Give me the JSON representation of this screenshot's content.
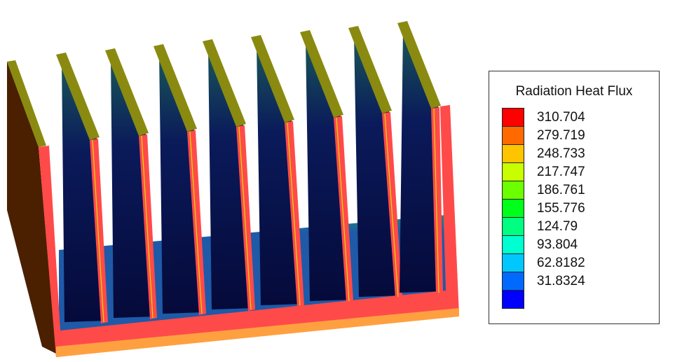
{
  "legend": {
    "title": "Radiation Heat Flux",
    "entries": [
      {
        "label": "310.704",
        "color": "#ff0000"
      },
      {
        "label": "279.719",
        "color": "#ff6a00"
      },
      {
        "label": "248.733",
        "color": "#ffc400"
      },
      {
        "label": "217.747",
        "color": "#c8ff00"
      },
      {
        "label": "186.761",
        "color": "#6cff00"
      },
      {
        "label": "155.776",
        "color": "#00ff1a"
      },
      {
        "label": "124.79",
        "color": "#00ff80"
      },
      {
        "label": "93.804",
        "color": "#00ffd0"
      },
      {
        "label": "62.8182",
        "color": "#00c8ff"
      },
      {
        "label": "31.8324",
        "color": "#006aff"
      },
      {
        "label": "",
        "color": "#0000ff"
      }
    ]
  },
  "colors": {
    "fin_top": "#8a8a10",
    "fin_face_dark": "#0a1a5a",
    "fin_face_mid": "#143a8a",
    "base_face": "#1e5aa8",
    "hot_edge": "#ff4a4a",
    "orange_bottom": "#ffa040",
    "side_dark": "#4a2000",
    "yellow_line": "#e0e000"
  }
}
